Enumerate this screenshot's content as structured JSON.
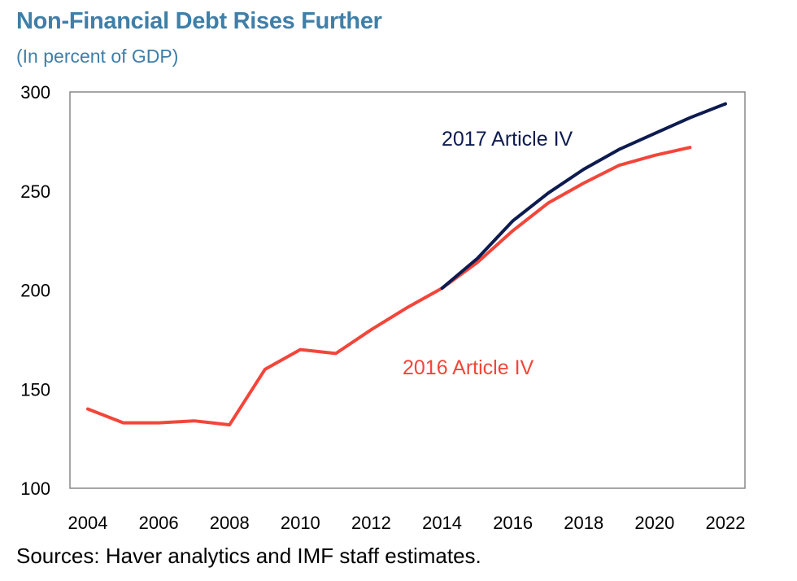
{
  "title": "Non-Financial Debt Rises Further",
  "subtitle": "(In percent of GDP)",
  "source": "Sources: Haver analytics and IMF staff estimates.",
  "colors": {
    "title": "#3f7fa8",
    "series_2017": "#0d1b4f",
    "series_2016": "#f2463a",
    "axis": "#888888"
  },
  "chart_data": {
    "type": "line",
    "title": "Non-Financial Debt Rises Further",
    "subtitle": "(In percent of GDP)",
    "xlabel": "",
    "ylabel": "",
    "xlim": [
      2004,
      2022
    ],
    "ylim": [
      100,
      300
    ],
    "x_ticks": [
      2004,
      2006,
      2008,
      2010,
      2012,
      2014,
      2016,
      2018,
      2020,
      2022
    ],
    "y_ticks": [
      100,
      150,
      200,
      250,
      300
    ],
    "grid": false,
    "series": [
      {
        "name": "2017 Article IV",
        "color": "#0d1b4f",
        "points": [
          [
            2014,
            201
          ],
          [
            2015,
            216
          ],
          [
            2016,
            235
          ],
          [
            2017,
            249
          ],
          [
            2018,
            261
          ],
          [
            2019,
            271
          ],
          [
            2020,
            279
          ],
          [
            2021,
            287
          ],
          [
            2022,
            294
          ]
        ]
      },
      {
        "name": "2016 Article IV",
        "color": "#f2463a",
        "points": [
          [
            2004,
            140
          ],
          [
            2005,
            133
          ],
          [
            2006,
            133
          ],
          [
            2007,
            134
          ],
          [
            2008,
            132
          ],
          [
            2009,
            160
          ],
          [
            2010,
            170
          ],
          [
            2011,
            168
          ],
          [
            2012,
            180
          ],
          [
            2013,
            191
          ],
          [
            2014,
            201
          ],
          [
            2015,
            214
          ],
          [
            2016,
            230
          ],
          [
            2017,
            244
          ],
          [
            2018,
            254
          ],
          [
            2019,
            263
          ],
          [
            2020,
            268
          ],
          [
            2021,
            272
          ]
        ]
      }
    ]
  }
}
